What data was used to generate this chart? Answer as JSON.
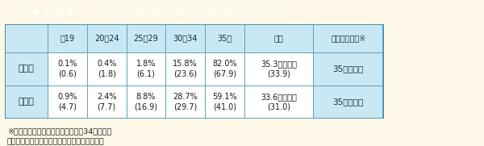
{
  "title_left": "図表 ◆ 2-2-4",
  "title_right": "道徳の時間の授業時数（平成 14年度実績，括弧内は平成 9 年度実績）",
  "header_bg_dark": "#2ab5b5",
  "header_bg_light": "#40c8c8",
  "cell_bg_blue": "#c8e8f4",
  "cell_bg_white": "#ffffff",
  "page_bg": "#fdf8e8",
  "table_border": "#4a8aaa",
  "text_dark": "#1a2a3a",
  "text_mid": "#2a4a6a",
  "col_headers": [
    "～19",
    "20～24",
    "25～29",
    "30～34",
    "35～",
    "平均",
    "標準授業時数※"
  ],
  "row_headers": [
    "小学校",
    "中学校"
  ],
  "data": [
    [
      "0.1%\n(0.6)",
      "0.4%\n(1.8)",
      "1.8%\n(6.1)",
      "15.8%\n(23.6)",
      "82.0%\n(67.9)",
      "35.3単位時間\n(33.9)",
      "35単位時間"
    ],
    [
      "0.9%\n(4.7)",
      "2.4%\n(7.7)",
      "8.8%\n(16.9)",
      "28.7%\n(29.7)",
      "59.1%\n(41.0)",
      "33.6単位時間\n(31.0)",
      "35単位時間"
    ]
  ],
  "footnote1": "※小学校第１学年の標準授業時数は34単位時間",
  "footnote2": "（資料）文部科学省「道徳教育推進状況調査」"
}
